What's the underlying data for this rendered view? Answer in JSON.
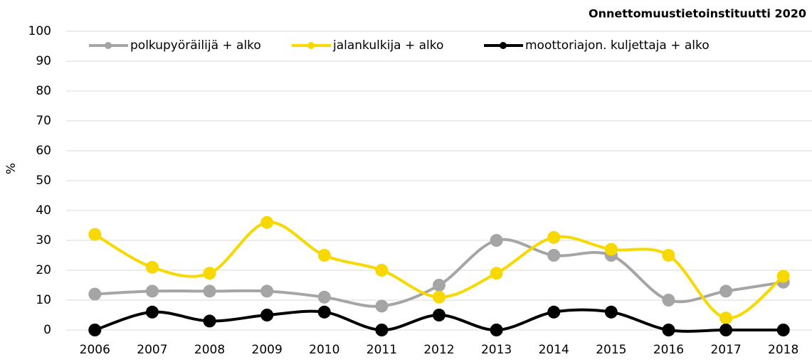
{
  "chart_data": {
    "type": "line",
    "title": "Onnettomuustietoinstituutti 2020",
    "y_label": "%",
    "categories": [
      "2006",
      "2007",
      "2008",
      "2009",
      "2010",
      "2011",
      "2012",
      "2013",
      "2014",
      "2015",
      "2016",
      "2017",
      "2018"
    ],
    "series": [
      {
        "name": "polkupyöräilijä + alko",
        "color": "#a5a5a5",
        "values": [
          12,
          13,
          13,
          13,
          11,
          8,
          15,
          30,
          25,
          25,
          10,
          13,
          16
        ]
      },
      {
        "name": "jalankulkija + alko",
        "color": "#f7d900",
        "values": [
          32,
          21,
          19,
          36,
          25,
          20,
          11,
          19,
          31,
          27,
          25,
          4,
          18
        ]
      },
      {
        "name": "moottoriajon. kuljettaja + alko",
        "color": "#000000",
        "values": [
          0,
          6,
          3,
          5,
          6,
          0,
          5,
          0,
          6,
          6,
          0,
          0,
          0
        ]
      }
    ],
    "ylim": [
      0,
      100
    ],
    "yticks": [
      0,
      10,
      20,
      30,
      40,
      50,
      60,
      70,
      80,
      90,
      100
    ],
    "grid": true,
    "smooth": true,
    "legend": "top"
  }
}
